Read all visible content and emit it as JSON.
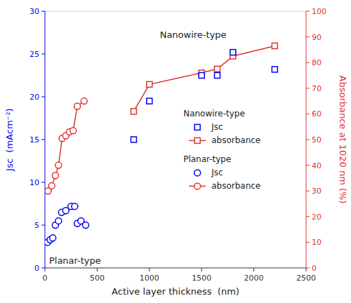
{
  "chart_data": {
    "type": "line",
    "xlabel": "Active layer thickness  (nm)",
    "ylabel": "Jsc  (mAcm⁻²)",
    "y2label": "Absorbance at 1020 nm (%)",
    "xlim": [
      0,
      2500
    ],
    "xticks": [
      0,
      500,
      1000,
      1500,
      2000,
      2500
    ],
    "ylim": [
      0,
      30
    ],
    "yticks": [
      0,
      5,
      10,
      15,
      20,
      25,
      30
    ],
    "y2lim": [
      0,
      100
    ],
    "y2ticks": [
      0,
      10,
      20,
      30,
      40,
      50,
      60,
      70,
      80,
      90,
      100
    ],
    "grid": false,
    "legend": "right",
    "series": [
      {
        "name": "absorbance",
        "group": "Planar-type",
        "type": "line",
        "axis": "y2",
        "color": "#dd3333",
        "marker": "circle",
        "line_style": "solid",
        "x": [
          30,
          65,
          100,
          130,
          165,
          200,
          235,
          270,
          310,
          375
        ],
        "values": [
          30.0,
          32.0,
          36.0,
          40.0,
          50.5,
          51.5,
          53.0,
          53.5,
          63.0,
          65.0
        ]
      },
      {
        "name": "absorbance",
        "group": "Nanowire-type",
        "type": "line",
        "axis": "y2",
        "color": "#dd3333",
        "marker": "square",
        "line_style": "solid",
        "x": [
          850,
          1000,
          1500,
          1650,
          1800,
          2200
        ],
        "values": [
          61.0,
          71.5,
          76.0,
          77.5,
          82.5,
          86.5
        ]
      },
      {
        "name": "Jsc",
        "group": "Planar-type",
        "type": "scatter",
        "axis": "y",
        "color": "#0000ee",
        "marker": "circle",
        "line_style": "none",
        "x": [
          25,
          50,
          75,
          100,
          130,
          160,
          200,
          250,
          285,
          310,
          345,
          390
        ],
        "values": [
          3.0,
          3.3,
          3.5,
          5.0,
          5.5,
          6.5,
          6.7,
          7.2,
          7.2,
          5.2,
          5.5,
          5.0
        ]
      },
      {
        "name": "Jsc",
        "group": "Nanowire-type",
        "type": "scatter",
        "axis": "y",
        "color": "#0000ee",
        "marker": "square",
        "line_style": "none",
        "x": [
          850,
          1000,
          1500,
          1650,
          1800,
          2200
        ],
        "values": [
          15.0,
          19.5,
          22.5,
          22.5,
          25.2,
          23.2
        ]
      }
    ],
    "annotations": [
      {
        "text": "Nanowire-type",
        "x": 1100,
        "y": 27.2
      },
      {
        "text": "Planar-type",
        "x": 40,
        "y": 0.8
      }
    ]
  }
}
